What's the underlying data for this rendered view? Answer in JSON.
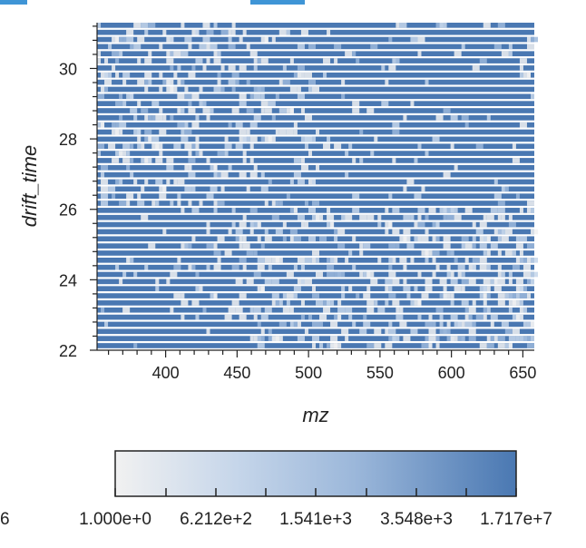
{
  "chart_data": {
    "type": "heatmap",
    "title": "",
    "xlabel": "mz",
    "ylabel": "drift_time",
    "xlim": [
      352,
      658
    ],
    "ylim": [
      22,
      31.3
    ],
    "x_ticks": [
      400,
      450,
      500,
      550,
      600,
      650
    ],
    "y_ticks": [
      22,
      24,
      26,
      28,
      30
    ],
    "grid": false,
    "rows": {
      "count": 46,
      "note_bands": "horizontal bands separated by white gaps; dense dark low-intensity region bottom-left, light high-density speckle in upper-left and lower-right",
      "low_intensity_color": "#4a78b2"
    },
    "colorbar": {
      "orientation": "horizontal",
      "colors": [
        "#f1f1f1",
        "#c6d6ea",
        "#9bb7da",
        "#4a78b2"
      ],
      "tick_labels": [
        "1.000e+0",
        "6.212e+2",
        "1.541e+3",
        "3.548e+3",
        "1.717e+7"
      ]
    },
    "cut_off_label": "6"
  }
}
